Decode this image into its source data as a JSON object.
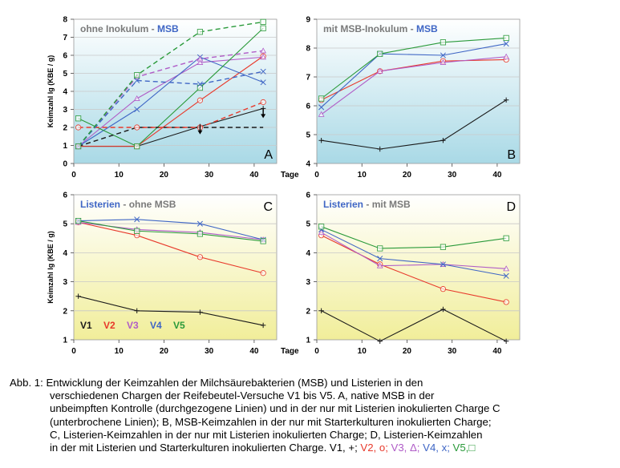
{
  "colors": {
    "V1": "#1a1a1a",
    "V2": "#e8392b",
    "V3": "#b05cc7",
    "V4": "#3f66c5",
    "V5": "#2a9a3a"
  },
  "ylabel": "Keimzahl lg (KBE / g)",
  "xunit": "Tage",
  "chart_data": [
    {
      "panel": "A",
      "type": "line",
      "corner": "A",
      "title_parts": [
        "ohne Inokulum",
        "-",
        "MSB"
      ],
      "xlim": [
        0,
        45
      ],
      "ylim": [
        0,
        8
      ],
      "xticks": [
        0,
        10,
        20,
        30,
        40
      ],
      "yticks": [
        0,
        1,
        2,
        3,
        4,
        5,
        6,
        7,
        8
      ],
      "show_ylabel": true,
      "show_xunit": true,
      "series": [
        {
          "name": "V1 Kontrolle",
          "version": "V1",
          "dashed": false,
          "marker": "+",
          "x": [
            1,
            14,
            28,
            42
          ],
          "y": [
            0.95,
            0.95,
            2.05,
            3.05
          ]
        },
        {
          "name": "V2 Kontrolle",
          "version": "V2",
          "dashed": false,
          "marker": "o",
          "x": [
            1,
            14,
            28,
            42
          ],
          "y": [
            0.95,
            0.95,
            3.5,
            5.95
          ]
        },
        {
          "name": "V3 Kontrolle",
          "version": "V3",
          "dashed": false,
          "marker": "^",
          "x": [
            1,
            14,
            28,
            42
          ],
          "y": [
            0.95,
            3.6,
            5.6,
            5.9
          ]
        },
        {
          "name": "V4 Kontrolle",
          "version": "V4",
          "dashed": false,
          "marker": "x",
          "x": [
            1,
            14,
            28,
            42
          ],
          "y": [
            0.95,
            3.0,
            5.9,
            4.5
          ]
        },
        {
          "name": "V5 Kontrolle",
          "version": "V5",
          "dashed": false,
          "marker": "s",
          "x": [
            1,
            14,
            28,
            42
          ],
          "y": [
            2.5,
            0.95,
            4.2,
            7.5
          ]
        },
        {
          "name": "V1 Listerien",
          "version": "V1",
          "dashed": true,
          "marker": "none",
          "x": [
            1,
            14,
            28,
            42
          ],
          "y": [
            0.95,
            2.0,
            2.0,
            2.0
          ]
        },
        {
          "name": "V2 Listerien",
          "version": "V2",
          "dashed": true,
          "marker": "o",
          "x": [
            1,
            14,
            28,
            42
          ],
          "y": [
            2.0,
            2.0,
            2.0,
            3.4
          ]
        },
        {
          "name": "V3 Listerien",
          "version": "V3",
          "dashed": true,
          "marker": "^",
          "x": [
            1,
            14,
            28,
            42
          ],
          "y": [
            0.95,
            4.8,
            5.8,
            6.25
          ]
        },
        {
          "name": "V4 Listerien",
          "version": "V4",
          "dashed": true,
          "marker": "x",
          "x": [
            1,
            14,
            28,
            42
          ],
          "y": [
            0.95,
            4.6,
            4.4,
            5.1
          ]
        },
        {
          "name": "V5 Listerien",
          "version": "V5",
          "dashed": true,
          "marker": "s",
          "x": [
            1,
            14,
            28,
            42
          ],
          "y": [
            0.95,
            4.9,
            7.3,
            7.85
          ]
        }
      ],
      "arrows": [
        {
          "x": 28,
          "y": 1.75
        },
        {
          "x": 42,
          "y": 2.65
        }
      ]
    },
    {
      "panel": "B",
      "type": "line",
      "corner": "B",
      "title_parts": [
        "mit MSB-Inokulum",
        "-",
        "MSB"
      ],
      "xlim": [
        0,
        45
      ],
      "ylim": [
        4,
        9
      ],
      "xticks": [
        0,
        10,
        20,
        30,
        40
      ],
      "yticks": [
        4,
        5,
        6,
        7,
        8,
        9
      ],
      "show_ylabel": false,
      "show_xunit": false,
      "series": [
        {
          "name": "V1",
          "version": "V1",
          "dashed": false,
          "marker": "+",
          "x": [
            1,
            14,
            28,
            42
          ],
          "y": [
            4.8,
            4.5,
            4.8,
            6.2
          ]
        },
        {
          "name": "V2",
          "version": "V2",
          "dashed": false,
          "marker": "o",
          "x": [
            1,
            14,
            28,
            42
          ],
          "y": [
            6.2,
            7.2,
            7.55,
            7.6
          ]
        },
        {
          "name": "V3",
          "version": "V3",
          "dashed": false,
          "marker": "^",
          "x": [
            1,
            14,
            28,
            42
          ],
          "y": [
            5.7,
            7.2,
            7.5,
            7.7
          ]
        },
        {
          "name": "V4",
          "version": "V4",
          "dashed": false,
          "marker": "x",
          "x": [
            1,
            14,
            28,
            42
          ],
          "y": [
            5.95,
            7.8,
            7.75,
            8.15
          ]
        },
        {
          "name": "V5",
          "version": "V5",
          "dashed": false,
          "marker": "s",
          "x": [
            1,
            14,
            28,
            42
          ],
          "y": [
            6.25,
            7.8,
            8.2,
            8.35
          ]
        }
      ]
    },
    {
      "panel": "C",
      "type": "line",
      "corner": "C",
      "title_parts": [
        "Listerien",
        "-",
        "ohne MSB"
      ],
      "xlim": [
        0,
        45
      ],
      "ylim": [
        1,
        6
      ],
      "xticks": [
        0,
        10,
        20,
        30,
        40
      ],
      "yticks": [
        1,
        2,
        3,
        4,
        5,
        6
      ],
      "show_ylabel": true,
      "show_xunit": true,
      "legend": [
        "V1",
        "V2",
        "V3",
        "V4",
        "V5"
      ],
      "series": [
        {
          "name": "V1",
          "version": "V1",
          "dashed": false,
          "marker": "+",
          "x": [
            1,
            14,
            28,
            42
          ],
          "y": [
            2.5,
            2.0,
            1.95,
            1.5
          ]
        },
        {
          "name": "V2",
          "version": "V2",
          "dashed": false,
          "marker": "o",
          "x": [
            1,
            14,
            28,
            42
          ],
          "y": [
            5.05,
            4.6,
            3.85,
            3.3
          ]
        },
        {
          "name": "V3",
          "version": "V3",
          "dashed": false,
          "marker": "^",
          "x": [
            1,
            14,
            28,
            42
          ],
          "y": [
            5.05,
            4.8,
            4.7,
            4.45
          ]
        },
        {
          "name": "V4",
          "version": "V4",
          "dashed": false,
          "marker": "x",
          "x": [
            1,
            14,
            28,
            42
          ],
          "y": [
            5.1,
            5.15,
            5.0,
            4.45
          ]
        },
        {
          "name": "V5",
          "version": "V5",
          "dashed": false,
          "marker": "s",
          "x": [
            1,
            14,
            28,
            42
          ],
          "y": [
            5.1,
            4.75,
            4.65,
            4.4
          ]
        }
      ]
    },
    {
      "panel": "D",
      "type": "line",
      "corner": "D",
      "title_parts": [
        "Listerien",
        "-",
        "mit MSB"
      ],
      "xlim": [
        0,
        45
      ],
      "ylim": [
        1,
        6
      ],
      "xticks": [
        0,
        10,
        20,
        30,
        40
      ],
      "yticks": [
        1,
        2,
        3,
        4,
        5,
        6
      ],
      "show_ylabel": false,
      "show_xunit": false,
      "series": [
        {
          "name": "V1",
          "version": "V1",
          "dashed": false,
          "marker": "+",
          "x": [
            1,
            14,
            28,
            42
          ],
          "y": [
            2.0,
            0.95,
            2.05,
            0.95
          ]
        },
        {
          "name": "V2",
          "version": "V2",
          "dashed": false,
          "marker": "o",
          "x": [
            1,
            14,
            28,
            42
          ],
          "y": [
            4.6,
            3.6,
            2.75,
            2.3
          ]
        },
        {
          "name": "V3",
          "version": "V3",
          "dashed": false,
          "marker": "^",
          "x": [
            1,
            14,
            28,
            42
          ],
          "y": [
            4.7,
            3.55,
            3.6,
            3.45
          ]
        },
        {
          "name": "V4",
          "version": "V4",
          "dashed": false,
          "marker": "x",
          "x": [
            1,
            14,
            28,
            42
          ],
          "y": [
            4.8,
            3.8,
            3.6,
            3.2
          ]
        },
        {
          "name": "V5",
          "version": "V5",
          "dashed": false,
          "marker": "s",
          "x": [
            1,
            14,
            28,
            42
          ],
          "y": [
            4.9,
            4.15,
            4.2,
            4.5
          ]
        }
      ]
    }
  ],
  "caption": {
    "lines": [
      "Abb. 1: Entwicklung der Keimzahlen der Milchsäurebakterien (MSB) und Listerien in den",
      "verschiedenen Chargen der Reifebeutel-Versuche V1 bis V5. A, native MSB in der",
      "unbeimpften Kontrolle (durchgezogene Linien) und in der nur mit Listerien inokulierten Charge C",
      "(unterbrochene Linien); B, MSB-Keimzahlen in der nur mit Starterkulturen inokulierten Charge;",
      "C, Listerien-Keimzahlen in der nur mit Listerien inokulierten Charge; D, Listerien-Keimzahlen"
    ],
    "last_line_prefix": "in der mit Listerien und Starterkulturen inokulierten Charge. V1, +;",
    "legend_parts": [
      {
        "version": "V2",
        "text": " V2, o;"
      },
      {
        "version": "V3",
        "text": " V3, Δ;"
      },
      {
        "version": "V4",
        "text": " V4, x;"
      },
      {
        "version": "V5",
        "text": " V5,□"
      }
    ]
  }
}
